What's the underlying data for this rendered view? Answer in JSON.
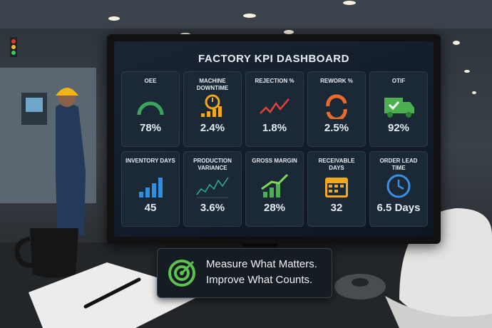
{
  "title": "FACTORY KPI DASHBOARD",
  "tiles": [
    {
      "label": "OEE",
      "value": "78%"
    },
    {
      "label": "MACHINE DOWNTIME",
      "value": "2.4%"
    },
    {
      "label": "REJECTION %",
      "value": "1.8%"
    },
    {
      "label": "REWORK %",
      "value": "2.5%"
    },
    {
      "label": "OTIF",
      "value": "92%"
    },
    {
      "label": "INVENTORY DAYS",
      "value": "45"
    },
    {
      "label": "PRODUCTION VARIANCE",
      "value": "3.6%"
    },
    {
      "label": "GROSS MARGIN",
      "value": "28%"
    },
    {
      "label": "RECEIVABLE DAYS",
      "value": "32"
    },
    {
      "label": "ORDER LEAD TIME",
      "value": "6.5 Days"
    }
  ],
  "sign": {
    "line1": "Measure What Matters.",
    "line2": "Improve What Counts."
  }
}
